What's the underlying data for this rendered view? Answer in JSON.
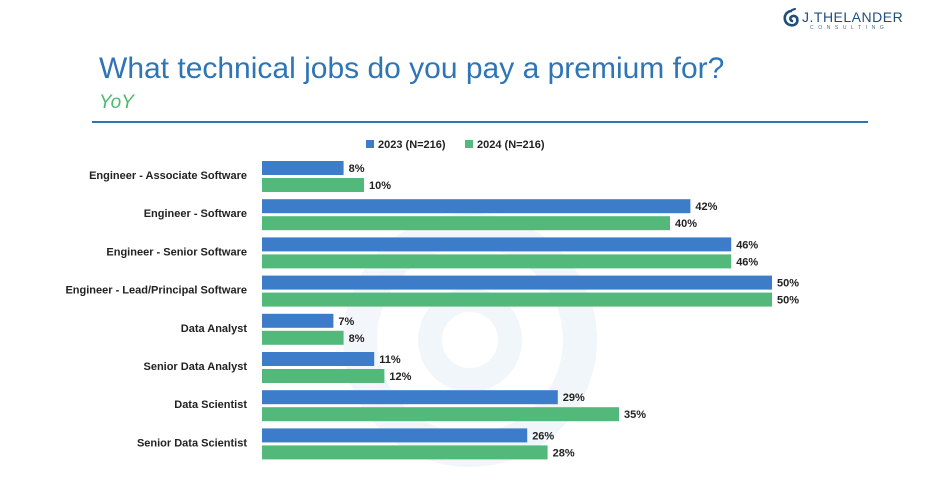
{
  "logo": {
    "name": "J.THELANDER",
    "sub": "CONSULTING",
    "icon": "spiral-logo-icon"
  },
  "title": "What technical jobs do you pay a premium for?",
  "subtitle": "YoY",
  "colors": {
    "accent": "#2e75b6",
    "series_2023": "#3d7cc9",
    "series_2024": "#52b97a",
    "subtitle": "#48b96d"
  },
  "chart_data": {
    "type": "bar",
    "orientation": "horizontal",
    "categories": [
      "Engineer - Associate Software",
      "Engineer - Software",
      "Engineer - Senior Software",
      "Engineer - Lead/Principal Software",
      "Data Analyst",
      "Senior Data Analyst",
      "Data Scientist",
      "Senior Data Scientist"
    ],
    "series": [
      {
        "name": "2023 (N=216)",
        "values": [
          8,
          42,
          46,
          50,
          7,
          11,
          29,
          26
        ],
        "color": "#3d7cc9"
      },
      {
        "name": "2024 (N=216)",
        "values": [
          10,
          40,
          46,
          50,
          8,
          12,
          35,
          28
        ],
        "color": "#52b97a"
      }
    ],
    "value_suffix": "%",
    "xlim": [
      0,
      50
    ],
    "grid": false,
    "legend": "top-center"
  }
}
